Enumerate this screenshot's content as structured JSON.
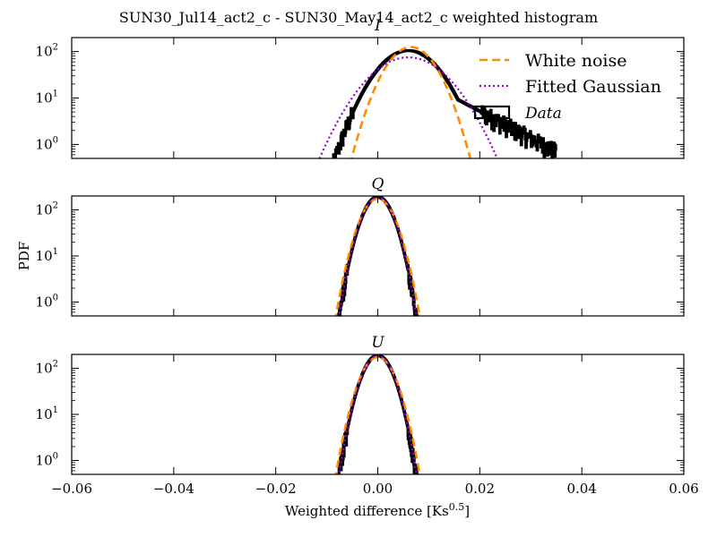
{
  "chart_data": {
    "type": "line",
    "title": "SUN30_Jul14_act2_c - SUN30_May14_act2_c weighted histogram",
    "xlabel": "Weighted difference [Ks$^{0.5}$]",
    "xlabel_main": "Weighted difference [Ks",
    "xlabel_exp": "0.5",
    "xlabel_close": "]",
    "ylabel": "PDF",
    "xlim": [
      -0.06,
      0.06
    ],
    "ylim": [
      0.5,
      200
    ],
    "yscale": "log",
    "x_ticks": [
      -0.06,
      -0.04,
      -0.02,
      0.0,
      0.02,
      0.04,
      0.06
    ],
    "x_tick_labels": [
      "−0.06",
      "−0.04",
      "−0.02",
      "0.00",
      "0.02",
      "0.04",
      "0.06"
    ],
    "y_ticks": [
      1,
      10,
      100
    ],
    "y_tick_bases": [
      "10",
      "10",
      "10"
    ],
    "y_tick_exps": [
      "0",
      "1",
      "2"
    ],
    "legend": {
      "location": "upper right of top panel",
      "entries": [
        {
          "label": "White noise",
          "style": "dashed",
          "color": "#ff8c00"
        },
        {
          "label": "Fitted Gaussian",
          "style": "dotted",
          "color": "#9400d3"
        },
        {
          "label": "Data",
          "style": "step",
          "color": "#000000"
        }
      ]
    },
    "panels": [
      {
        "name": "I",
        "series": [
          {
            "name": "Data",
            "kind": "histogram",
            "color": "#000000",
            "mean": 0.006,
            "sigma": 0.0044,
            "peak": 105,
            "skew_tail": {
              "start": 0.012,
              "scale": 0.0075,
              "weight": 0.9
            },
            "x_range": [
              -0.009,
              0.035
            ]
          },
          {
            "name": "White noise",
            "kind": "gaussian",
            "color": "#ff8c00",
            "mean": 0.0065,
            "sigma": 0.0035,
            "peak": 125
          },
          {
            "name": "Fitted Gaussian",
            "kind": "gaussian",
            "color": "#9400d3",
            "mean": 0.006,
            "sigma": 0.0055,
            "peak": 75
          }
        ]
      },
      {
        "name": "Q",
        "series": [
          {
            "name": "Data",
            "kind": "histogram",
            "color": "#000000",
            "mean": 0.0,
            "sigma": 0.0022,
            "peak": 190,
            "x_range": [
              -0.008,
              0.009
            ]
          },
          {
            "name": "White noise",
            "kind": "gaussian",
            "color": "#ff8c00",
            "mean": 0.0,
            "sigma": 0.0024,
            "peak": 175
          },
          {
            "name": "Fitted Gaussian",
            "kind": "gaussian",
            "color": "#9400d3",
            "mean": 0.0,
            "sigma": 0.0022,
            "peak": 190
          }
        ]
      },
      {
        "name": "U",
        "series": [
          {
            "name": "Data",
            "kind": "histogram",
            "color": "#000000",
            "mean": 0.0,
            "sigma": 0.0022,
            "peak": 190,
            "x_range": [
              -0.008,
              0.009
            ]
          },
          {
            "name": "White noise",
            "kind": "gaussian",
            "color": "#ff8c00",
            "mean": 0.0,
            "sigma": 0.0024,
            "peak": 175
          },
          {
            "name": "Fitted Gaussian",
            "kind": "gaussian",
            "color": "#9400d3",
            "mean": 0.0,
            "sigma": 0.0022,
            "peak": 190
          }
        ]
      }
    ]
  }
}
